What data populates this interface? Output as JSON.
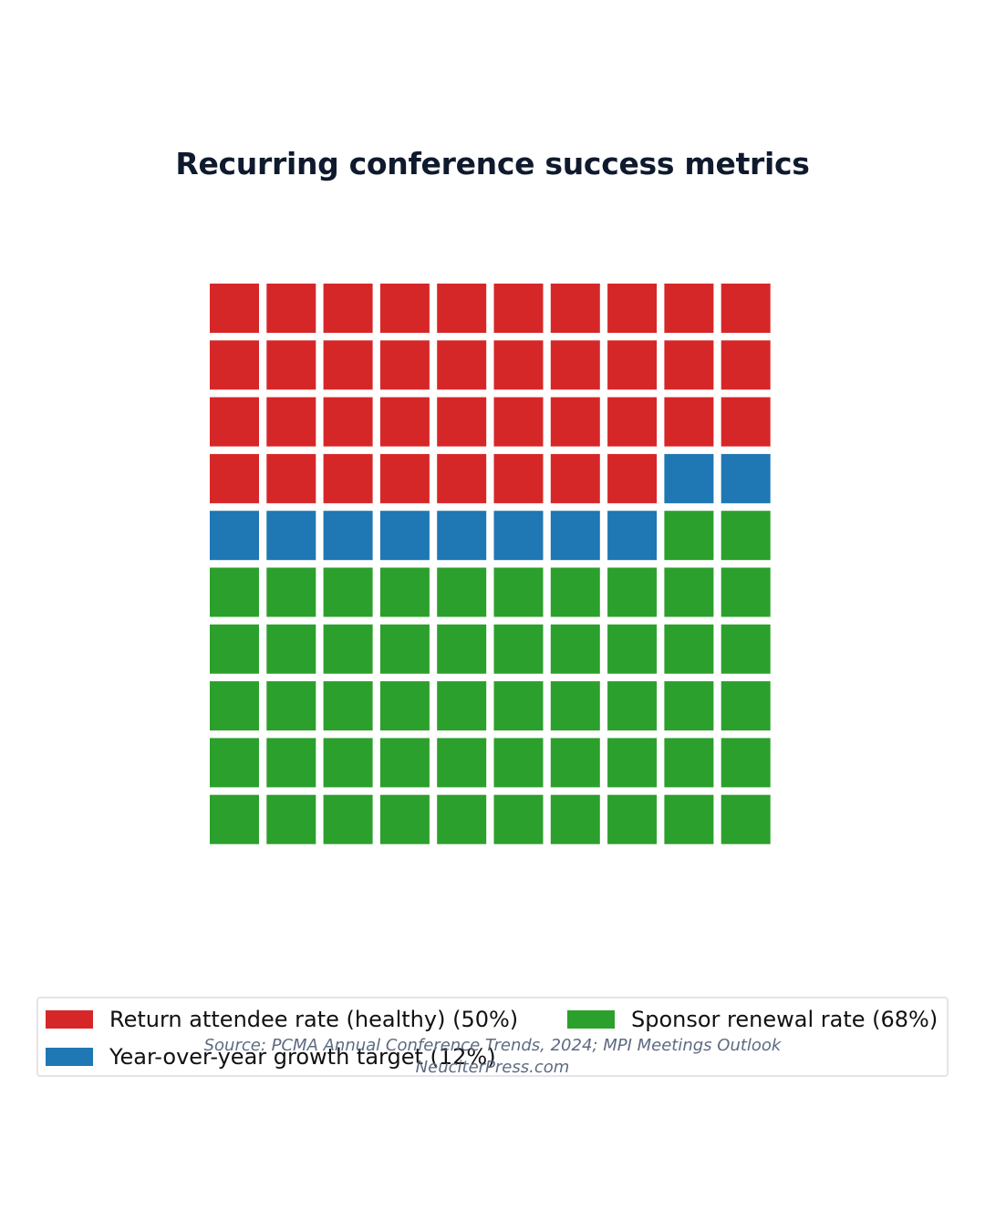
{
  "chart_data": {
    "type": "waffle",
    "title": "Recurring conference success metrics",
    "grid": {
      "rows": 10,
      "cols": 10
    },
    "series": [
      {
        "name": "Return attendee rate (healthy) (50%)",
        "value": 50,
        "squares": 38,
        "color": "#d62728"
      },
      {
        "name": "Year-over-year growth target (12%)",
        "value": 12,
        "squares": 10,
        "color": "#1f77b4"
      },
      {
        "name": "Sponsor renewal rate (68%)",
        "value": 68,
        "squares": 52,
        "color": "#2ca02c"
      }
    ],
    "legend_position": "bottom"
  },
  "footer": {
    "source": "Source: PCMA Annual Conference Trends, 2024; MPI Meetings Outlook",
    "site": "NeuciterPress.com"
  }
}
